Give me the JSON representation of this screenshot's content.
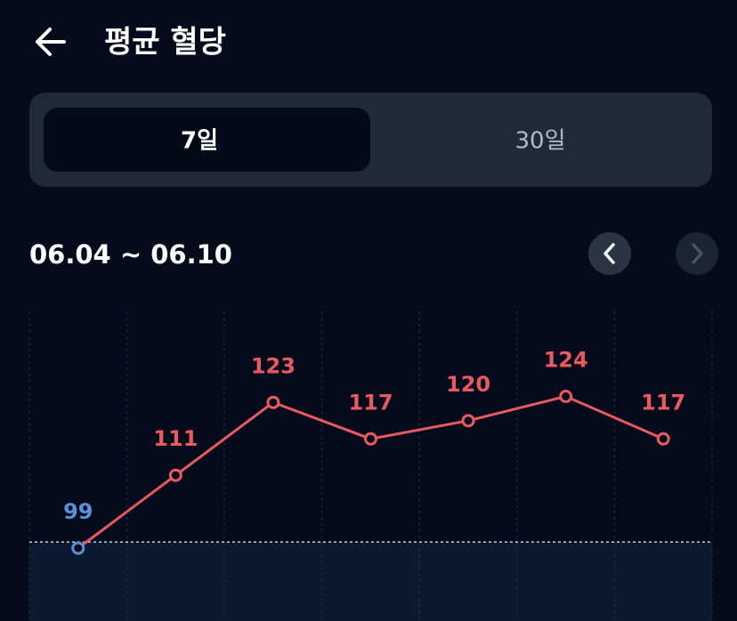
{
  "header": {
    "title": "평균 혈당"
  },
  "tabs": [
    {
      "label": "7일",
      "selected": true
    },
    {
      "label": "30일",
      "selected": false
    }
  ],
  "date_range": "06.04 ~ 06.10",
  "chart_data": {
    "type": "line",
    "categories": [
      null,
      null,
      null,
      null,
      null,
      null,
      null
    ],
    "series": [
      {
        "color": "#e85a5f",
        "low_color": "#5b8fd9",
        "values": [
          99,
          111,
          123,
          117,
          120,
          124,
          117
        ]
      }
    ],
    "reference_line": 100,
    "ylim": [
      87,
      138
    ]
  }
}
